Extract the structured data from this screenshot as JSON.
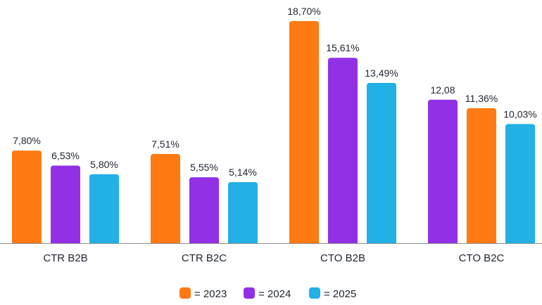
{
  "chart_data": {
    "type": "bar",
    "categories": [
      "CTR B2B",
      "CTR B2C",
      "CTO B2B",
      "CTO B2C"
    ],
    "ylim": [
      0,
      20
    ],
    "grid": false,
    "legend_position": "bottom",
    "bars": [
      [
        {
          "series": "2023",
          "value": 7.8,
          "label": "7,80%"
        },
        {
          "series": "2024",
          "value": 6.53,
          "label": "6,53%"
        },
        {
          "series": "2025",
          "value": 5.8,
          "label": "5,80%"
        }
      ],
      [
        {
          "series": "2023",
          "value": 7.51,
          "label": "7,51%"
        },
        {
          "series": "2024",
          "value": 5.55,
          "label": "5,55%"
        },
        {
          "series": "2025",
          "value": 5.14,
          "label": "5,14%"
        }
      ],
      [
        {
          "series": "2023",
          "value": 18.7,
          "label": "18,70%"
        },
        {
          "series": "2024",
          "value": 15.61,
          "label": "15,61%"
        },
        {
          "series": "2025",
          "value": 13.49,
          "label": "13,49%"
        }
      ],
      [
        {
          "series": "2024",
          "value": 12.08,
          "label": "12,08"
        },
        {
          "series": "2023",
          "value": 11.36,
          "label": "11,36%"
        },
        {
          "series": "2025",
          "value": 10.03,
          "label": "10,03%"
        }
      ]
    ],
    "series": [
      {
        "name": "2023",
        "color": "#FF7A12",
        "legend_label": "= 2023"
      },
      {
        "name": "2024",
        "color": "#9230E6",
        "legend_label": "= 2024"
      },
      {
        "name": "2025",
        "color": "#22B0E6",
        "legend_label": "= 2025"
      }
    ],
    "axis_color": "#8a8a8a"
  }
}
